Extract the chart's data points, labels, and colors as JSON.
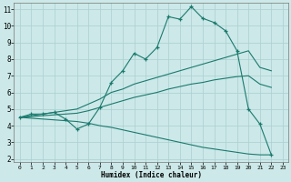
{
  "xlabel": "Humidex (Indice chaleur)",
  "bg_color": "#cce8e8",
  "line_color": "#1a7a6e",
  "grid_color": "#aacfcf",
  "xlim": [
    -0.5,
    23.5
  ],
  "ylim": [
    1.8,
    11.4
  ],
  "xticks": [
    0,
    1,
    2,
    3,
    4,
    5,
    6,
    7,
    8,
    9,
    10,
    11,
    12,
    13,
    14,
    15,
    16,
    17,
    18,
    19,
    20,
    21,
    22,
    23
  ],
  "yticks": [
    2,
    3,
    4,
    5,
    6,
    7,
    8,
    9,
    10,
    11
  ],
  "curve1_x": [
    0,
    1,
    2,
    3,
    4,
    5,
    6,
    7,
    8,
    9,
    10,
    11,
    12,
    13,
    14,
    15,
    16,
    17,
    18,
    19,
    20,
    21,
    22
  ],
  "curve1_y": [
    4.5,
    4.7,
    4.7,
    4.8,
    4.4,
    3.8,
    4.1,
    5.1,
    6.6,
    7.3,
    8.35,
    8.0,
    8.7,
    10.55,
    10.4,
    11.15,
    10.45,
    10.2,
    9.7,
    8.5,
    5.0,
    4.1,
    2.25
  ],
  "curve2_x": [
    0,
    1,
    2,
    3,
    4,
    5,
    6,
    7,
    8,
    9,
    10,
    11,
    12,
    13,
    14,
    15,
    16,
    17,
    18,
    19,
    20,
    21,
    22
  ],
  "curve2_y": [
    4.5,
    4.6,
    4.7,
    4.8,
    4.9,
    5.0,
    5.3,
    5.6,
    6.0,
    6.2,
    6.5,
    6.7,
    6.9,
    7.1,
    7.3,
    7.5,
    7.7,
    7.9,
    8.1,
    8.3,
    8.5,
    7.5,
    7.3
  ],
  "curve3_x": [
    0,
    1,
    2,
    3,
    4,
    5,
    6,
    7,
    8,
    9,
    10,
    11,
    12,
    13,
    14,
    15,
    16,
    17,
    18,
    19,
    20,
    21,
    22
  ],
  "curve3_y": [
    4.5,
    4.55,
    4.6,
    4.65,
    4.7,
    4.75,
    4.9,
    5.1,
    5.3,
    5.5,
    5.7,
    5.85,
    6.0,
    6.2,
    6.35,
    6.5,
    6.6,
    6.75,
    6.85,
    6.95,
    7.0,
    6.5,
    6.3
  ],
  "curve4_x": [
    0,
    1,
    2,
    3,
    4,
    5,
    6,
    7,
    8,
    9,
    10,
    11,
    12,
    13,
    14,
    15,
    16,
    17,
    18,
    19,
    20,
    21,
    22
  ],
  "curve4_y": [
    4.5,
    4.45,
    4.4,
    4.35,
    4.3,
    4.25,
    4.15,
    4.0,
    3.9,
    3.75,
    3.6,
    3.45,
    3.3,
    3.15,
    3.0,
    2.85,
    2.7,
    2.6,
    2.5,
    2.4,
    2.3,
    2.25,
    2.25
  ]
}
